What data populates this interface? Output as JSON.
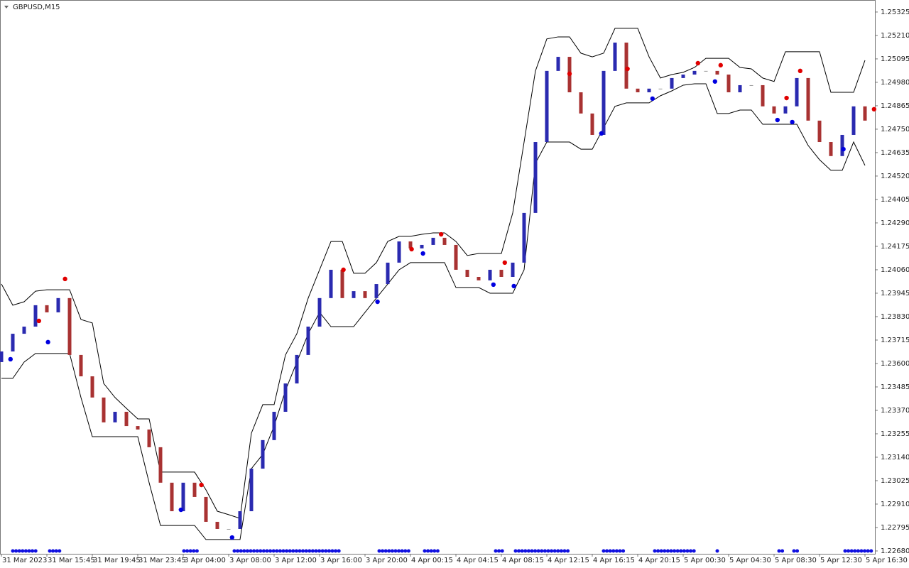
{
  "chart_data": {
    "type": "candlestick",
    "title": "GBPUSD,M15",
    "categories": [
      "31 Mar 2023",
      null,
      null,
      null,
      "31 Mar 15:45",
      null,
      null,
      null,
      "31 Mar 19:45",
      null,
      null,
      null,
      "31 Mar 23:45",
      null,
      null,
      null,
      "3 Apr 04:00",
      null,
      null,
      null,
      "3 Apr 08:00",
      null,
      null,
      null,
      "3 Apr 12:00",
      null,
      null,
      null,
      "3 Apr 16:00",
      null,
      null,
      null,
      "3 Apr 20:00",
      null,
      null,
      null,
      "4 Apr 00:15",
      null,
      null,
      null,
      "4 Apr 04:15",
      null,
      null,
      null,
      "4 Apr 08:15",
      null,
      null,
      null,
      "4 Apr 12:15",
      null,
      null,
      null,
      "4 Apr 16:15",
      null,
      null,
      null,
      "4 Apr 20:15",
      null,
      null,
      null,
      "5 Apr 00:30",
      null,
      null,
      null,
      "5 Apr 04:30",
      null,
      null,
      null,
      "5 Apr 08:30",
      null,
      null,
      null,
      "5 Apr 12:30",
      null,
      null,
      null,
      "5 Apr 16:30"
    ],
    "open": [
      1.23607,
      1.23659,
      1.23746,
      1.23781,
      1.23886,
      1.23851,
      1.23921,
      1.23642,
      1.23537,
      1.23433,
      1.23311,
      1.23363,
      1.23293,
      1.23276,
      1.23189,
      1.23015,
      1.22875,
      1.23015,
      1.22945,
      1.22823,
      1.22788,
      1.22788,
      1.22875,
      1.23084,
      1.23224,
      1.23363,
      1.23502,
      1.23642,
      1.23781,
      1.23921,
      1.2406,
      1.23921,
      1.23955,
      1.23921,
      1.2399,
      1.24095,
      1.24199,
      1.24165,
      1.24182,
      1.24217,
      1.24182,
      1.2406,
      1.24025,
      1.24008,
      1.2406,
      1.24025,
      1.24095,
      1.24339,
      1.24687,
      1.25036,
      1.25105,
      1.24931,
      1.24827,
      1.24722,
      1.25036,
      1.25175,
      1.24949,
      1.24931,
      1.24949,
      1.24949,
      1.25001,
      1.25018,
      1.25036,
      1.25036,
      1.25018,
      1.24931,
      1.24966,
      1.24966,
      1.24862,
      1.24827,
      1.24862,
      1.25001,
      1.24792,
      1.24687,
      1.24618,
      1.24722,
      1.24862
    ],
    "close": [
      1.23659,
      1.23746,
      1.23781,
      1.23886,
      1.23851,
      1.23921,
      1.23642,
      1.23537,
      1.23433,
      1.23311,
      1.23363,
      1.23293,
      1.23276,
      1.23189,
      1.23015,
      1.22875,
      1.23015,
      1.22945,
      1.22823,
      1.22788,
      1.22788,
      1.22875,
      1.23084,
      1.23224,
      1.23363,
      1.23502,
      1.23642,
      1.23781,
      1.23921,
      1.2406,
      1.23921,
      1.23955,
      1.23921,
      1.2399,
      1.24095,
      1.24199,
      1.24165,
      1.24182,
      1.24217,
      1.24182,
      1.2406,
      1.24025,
      1.24008,
      1.2406,
      1.24025,
      1.24095,
      1.24339,
      1.24687,
      1.25036,
      1.25105,
      1.24931,
      1.24827,
      1.24722,
      1.25036,
      1.25175,
      1.24949,
      1.24931,
      1.24949,
      1.24949,
      1.25001,
      1.25018,
      1.25036,
      1.25036,
      1.25018,
      1.24931,
      1.24966,
      1.24966,
      1.24862,
      1.24827,
      1.24862,
      1.25001,
      1.24792,
      1.24687,
      1.24618,
      1.24722,
      1.24862,
      1.24792
    ],
    "up_color": "#2a2ab0",
    "down_color": "#a83232",
    "neutral_color": "#999999",
    "channel_color": "#000000",
    "channel_upper": [
      1.2399,
      1.23886,
      1.23903,
      1.23955,
      1.23962,
      1.23962,
      1.23962,
      1.23816,
      1.23799,
      1.23502,
      1.23433,
      1.2338,
      1.23328,
      1.23328,
      1.23067,
      1.23067,
      1.23067,
      1.23067,
      1.2298,
      1.22875,
      1.22858,
      1.2284,
      1.23258,
      1.23398,
      1.23398,
      1.23642,
      1.23746,
      1.23921,
      1.2406,
      1.24199,
      1.24199,
      1.24043,
      1.24043,
      1.24095,
      1.24199,
      1.24224,
      1.24224,
      1.24234,
      1.24241,
      1.24241,
      1.24199,
      1.2413,
      1.2414,
      1.2414,
      1.2414,
      1.24339,
      1.24687,
      1.25036,
      1.25193,
      1.25203,
      1.25203,
      1.25123,
      1.25105,
      1.25123,
      1.25245,
      1.25245,
      1.25245,
      1.25105,
      1.25001,
      1.25018,
      1.25029,
      1.25053,
      1.25098,
      1.25098,
      1.25098,
      1.25053,
      1.25046,
      1.25001,
      1.24984,
      1.2513,
      1.2513,
      1.2513,
      1.2513,
      1.24931,
      1.24931,
      1.24931,
      1.25088
    ],
    "channel_lower": [
      1.23527,
      1.23527,
      1.23607,
      1.23649,
      1.23649,
      1.23649,
      1.23649,
      1.23433,
      1.23241,
      1.23241,
      1.23241,
      1.23241,
      1.23241,
      1.23015,
      1.22805,
      1.22805,
      1.22805,
      1.22805,
      1.22736,
      1.22736,
      1.22736,
      1.22736,
      1.23084,
      1.23154,
      1.23293,
      1.23468,
      1.23607,
      1.23746,
      1.23851,
      1.23781,
      1.23781,
      1.23781,
      1.23851,
      1.23921,
      1.2399,
      1.2406,
      1.24095,
      1.24095,
      1.24095,
      1.24095,
      1.23973,
      1.23973,
      1.23973,
      1.23945,
      1.23945,
      1.23945,
      1.2406,
      1.24583,
      1.24687,
      1.24687,
      1.24687,
      1.24652,
      1.24652,
      1.24757,
      1.24862,
      1.24879,
      1.24879,
      1.24879,
      1.24914,
      1.24938,
      1.24966,
      1.24973,
      1.24973,
      1.24827,
      1.24827,
      1.24844,
      1.24844,
      1.24774,
      1.24774,
      1.24774,
      1.24774,
      1.2467,
      1.246,
      1.24548,
      1.24548,
      1.24687,
      1.24572
    ],
    "sell_signals": {
      "color": "#e00000",
      "x": [
        3.3,
        5.6,
        17.6,
        30.1,
        36.1,
        38.7,
        44.3,
        50,
        55.1,
        61.3,
        63.3,
        69.1,
        70.3,
        76.8
      ],
      "y": [
        1.23809,
        1.24015,
        1.23004,
        1.2406,
        1.24161,
        1.24234,
        1.24095,
        1.25022,
        1.25046,
        1.25074,
        1.25064,
        1.24903,
        1.25036,
        1.24848
      ]
    },
    "buy_signals": {
      "color": "#0000e0",
      "x": [
        0.8,
        4.1,
        15.8,
        20.3,
        33.1,
        37.1,
        43.3,
        45.1,
        52.8,
        57.3,
        62.8,
        68.3,
        69.6,
        74.1
      ],
      "y": [
        1.23621,
        1.23705,
        1.22882,
        1.22746,
        1.23903,
        1.2414,
        1.23987,
        1.2398,
        1.24729,
        1.249,
        1.24984,
        1.24795,
        1.24785,
        1.24652
      ]
    },
    "ylim": [
      1.22666,
      1.25384
    ],
    "yticks": [
      {
        "value": 1.2268,
        "label": "1.22680"
      },
      {
        "value": 1.22795,
        "label": "1.22795"
      },
      {
        "value": 1.2291,
        "label": "1.22910"
      },
      {
        "value": 1.23025,
        "label": "1.23025"
      },
      {
        "value": 1.2314,
        "label": "1.23140"
      },
      {
        "value": 1.23255,
        "label": "1.23255"
      },
      {
        "value": 1.2337,
        "label": "1.23370"
      },
      {
        "value": 1.23485,
        "label": "1.23485"
      },
      {
        "value": 1.236,
        "label": "1.23600"
      },
      {
        "value": 1.23715,
        "label": "1.23715"
      },
      {
        "value": 1.2383,
        "label": "1.23830"
      },
      {
        "value": 1.23945,
        "label": "1.23945"
      },
      {
        "value": 1.2406,
        "label": "1.24060"
      },
      {
        "value": 1.24175,
        "label": "1.24175"
      },
      {
        "value": 1.2429,
        "label": "1.24290"
      },
      {
        "value": 1.24405,
        "label": "1.24405"
      },
      {
        "value": 1.2452,
        "label": "1.24520"
      },
      {
        "value": 1.24635,
        "label": "1.24635"
      },
      {
        "value": 1.2475,
        "label": "1.24750"
      },
      {
        "value": 1.24865,
        "label": "1.24865"
      },
      {
        "value": 1.2498,
        "label": "1.24980"
      },
      {
        "value": 1.25095,
        "label": "1.25095"
      },
      {
        "value": 1.2521,
        "label": "1.25210"
      },
      {
        "value": 1.25325,
        "label": "1.25325"
      }
    ]
  }
}
